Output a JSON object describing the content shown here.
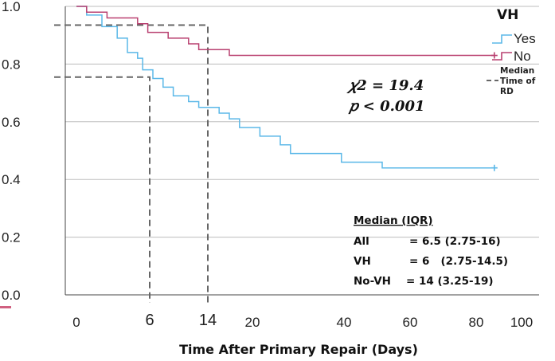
{
  "chart_data": {
    "type": "line",
    "title": "",
    "xlabel": "Time After Primary Repair (Days)",
    "ylabel": "",
    "xlim": [
      0,
      100
    ],
    "ylim": [
      0,
      1.0
    ],
    "grid": "horizontal",
    "y_ticks": [
      "0.0",
      "0.2",
      "0.4",
      "0.6",
      "0.8",
      "1.0"
    ],
    "x_ticks": [
      "0",
      "20",
      "40",
      "60",
      "80",
      "100"
    ],
    "extra_x_ticks": [
      "6",
      "14"
    ],
    "legend": {
      "title": "VH",
      "position": "top-right",
      "entries": [
        "Yes",
        "No",
        "Median Time of RD"
      ]
    },
    "series": [
      {
        "name": "Yes",
        "color": "#5bb8e8",
        "x": [
          0,
          2,
          5,
          8,
          10,
          12,
          13,
          15,
          17,
          19,
          22,
          24,
          28,
          30,
          32,
          36,
          40,
          42,
          52,
          60,
          82
        ],
        "y": [
          1.0,
          0.97,
          0.93,
          0.89,
          0.84,
          0.82,
          0.78,
          0.75,
          0.72,
          0.69,
          0.67,
          0.65,
          0.63,
          0.61,
          0.58,
          0.55,
          0.52,
          0.49,
          0.46,
          0.44,
          0.44
        ],
        "censored": [
          82,
          0.44
        ]
      },
      {
        "name": "No",
        "color": "#b94070",
        "x": [
          0,
          2,
          6,
          12,
          14,
          18,
          22,
          24,
          30,
          82
        ],
        "y": [
          1.0,
          0.98,
          0.96,
          0.94,
          0.91,
          0.89,
          0.87,
          0.85,
          0.83,
          0.83
        ],
        "censored": [
          82,
          0.83
        ]
      }
    ],
    "reference_lines": [
      {
        "x": 6,
        "y": 0.755
      },
      {
        "x": 14,
        "y": 0.935
      }
    ],
    "annotations": {
      "chi2": "𝜒2 = 19.4",
      "p": "𝑝 < 0.001",
      "median_title": "Median (IQR)",
      "median_rows": [
        {
          "label": "All",
          "value": "= 6.5 (2.75-16)"
        },
        {
          "label": "VH",
          "value": "= 6   (2.75-14.5)"
        },
        {
          "label": "No-VH",
          "value": "= 14 (3.25-19)"
        }
      ]
    }
  }
}
